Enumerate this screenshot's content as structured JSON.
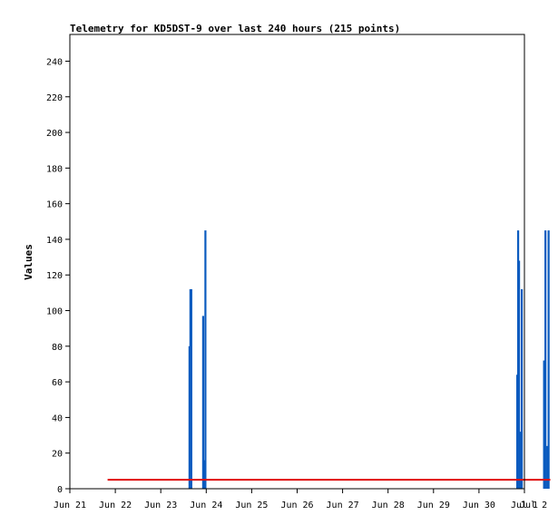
{
  "chart_data": {
    "type": "bar",
    "title": "Telemetry for KD5DST-9 over last 240 hours (215 points)",
    "xlabel": "",
    "ylabel": "Values",
    "ylim": [
      0,
      255
    ],
    "xlim_days": [
      21.0,
      31.0
    ],
    "x_ticks": [
      {
        "label": "Jun 21",
        "day": 21
      },
      {
        "label": "Jun 22",
        "day": 22
      },
      {
        "label": "Jun 23",
        "day": 23
      },
      {
        "label": "Jun 24",
        "day": 24
      },
      {
        "label": "Jun 25",
        "day": 25
      },
      {
        "label": "Jun 26",
        "day": 26
      },
      {
        "label": "Jun 27",
        "day": 27
      },
      {
        "label": "Jun 28",
        "day": 28
      },
      {
        "label": "Jun 29",
        "day": 29
      },
      {
        "label": "Jun 30",
        "day": 30
      },
      {
        "label": "Jul 1",
        "day": 31
      },
      {
        "label": "Jul 2",
        "day": 32
      }
    ],
    "y_ticks": [
      0,
      20,
      40,
      60,
      80,
      100,
      120,
      140,
      160,
      180,
      200,
      220,
      240
    ],
    "grid": false,
    "series": [
      {
        "type": "bar",
        "color": "#0a5bbf",
        "points": [
          {
            "day": 23.63,
            "value": 80
          },
          {
            "day": 23.65,
            "value": 112
          },
          {
            "day": 23.67,
            "value": 112
          },
          {
            "day": 23.93,
            "value": 97
          },
          {
            "day": 23.96,
            "value": 16
          },
          {
            "day": 23.98,
            "value": 145
          },
          {
            "day": 30.84,
            "value": 64
          },
          {
            "day": 30.86,
            "value": 145
          },
          {
            "day": 30.88,
            "value": 128
          },
          {
            "day": 30.9,
            "value": 24
          },
          {
            "day": 30.92,
            "value": 32
          },
          {
            "day": 30.94,
            "value": 112
          },
          {
            "day": 31.43,
            "value": 72
          },
          {
            "day": 31.46,
            "value": 145
          },
          {
            "day": 31.5,
            "value": 24
          },
          {
            "day": 31.53,
            "value": 145
          }
        ]
      },
      {
        "type": "line",
        "color": "#e01010",
        "x_days": [
          21.83,
          31.57
        ],
        "y": [
          5,
          5
        ]
      }
    ]
  }
}
